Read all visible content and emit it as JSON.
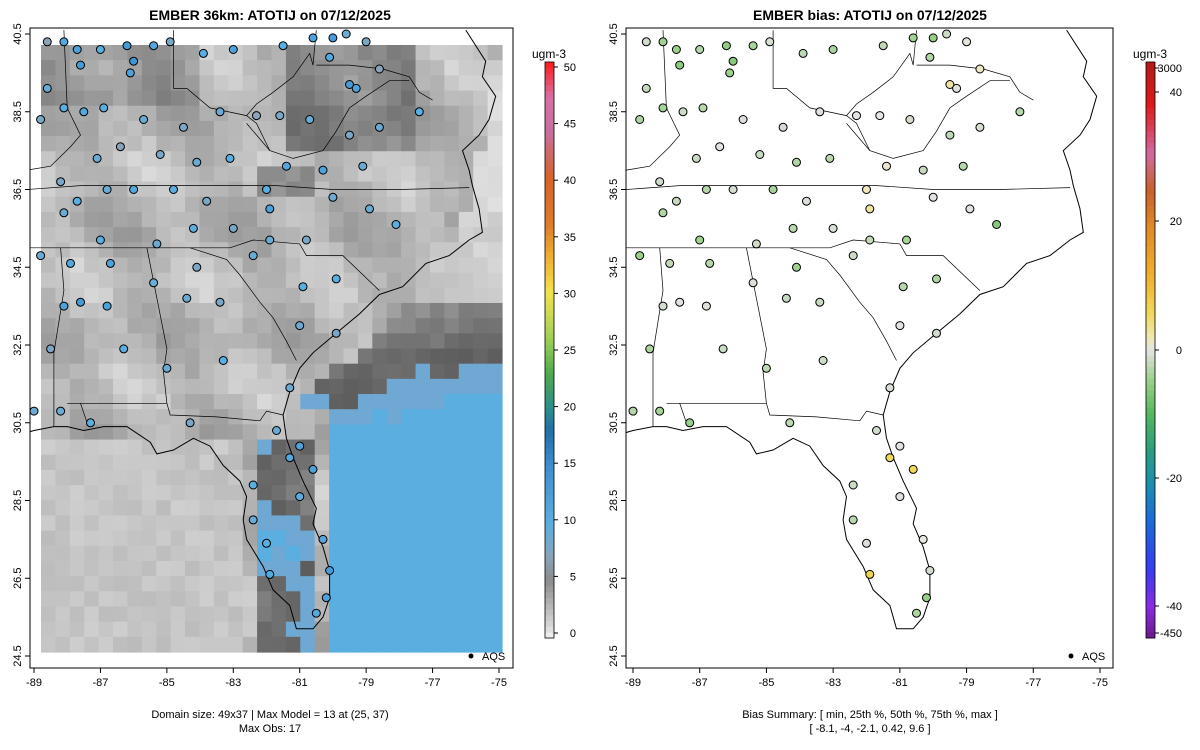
{
  "left_panel": {
    "title": "EMBER 36km: ATOTIJ on 07/12/2025",
    "x_ticks": [
      "-89",
      "-87",
      "-85",
      "-83",
      "-81",
      "-79",
      "-77",
      "-75"
    ],
    "y_ticks": [
      "24.5",
      "26.5",
      "28.5",
      "30.5",
      "32.5",
      "34.5",
      "36.5",
      "38.5",
      "40.5"
    ],
    "colorbar": {
      "unit": "ugm-3",
      "ticks": [
        "0",
        "5",
        "10",
        "15",
        "20",
        "25",
        "30",
        "35",
        "40",
        "45",
        "50"
      ],
      "min": 0,
      "max": 50
    },
    "legend_label": "AQS",
    "footer_line1": "Domain size: 49x37 | Max Model = 13 at (25, 37)",
    "footer_line2": "Max Obs: 17"
  },
  "right_panel": {
    "title": "EMBER bias: ATOTIJ on 07/12/2025",
    "x_ticks": [
      "-89",
      "-87",
      "-85",
      "-83",
      "-81",
      "-79",
      "-77",
      "-75"
    ],
    "y_ticks": [
      "24.5",
      "26.5",
      "28.5",
      "30.5",
      "32.5",
      "34.5",
      "36.5",
      "38.5",
      "40.5"
    ],
    "colorbar": {
      "unit": "ugm-3",
      "ticks": [
        "3000",
        "40",
        "20",
        "0",
        "-20",
        "-40",
        "-450"
      ]
    },
    "legend_label": "AQS",
    "footer_line1": "Bias Summary: [ min, 25th %, 50th %, 75th %, max ]",
    "footer_line2": "[ -8.1,   -4,   -2.1,   0.42,   9.6 ]"
  },
  "chart_data": {
    "type": "map",
    "variable": "ATOTIJ",
    "date": "07/12/2025",
    "units": "ugm-3",
    "lon_range": [
      -89,
      -75
    ],
    "lat_range": [
      24.5,
      40.5
    ],
    "domain_size": [
      49,
      37
    ],
    "max_model": 13,
    "max_model_cell": [
      25,
      37
    ],
    "max_obs": 17,
    "bias_summary": {
      "min": -8.1,
      "p25": -4,
      "median": -2.1,
      "p75": 0.42,
      "max": 9.6
    },
    "stations": [
      {
        "lon": -88.6,
        "lat": 40.3,
        "obs": 7,
        "bias": -1.2
      },
      {
        "lon": -88.1,
        "lat": 40.3,
        "obs": 11,
        "bias": -4.5
      },
      {
        "lon": -87.7,
        "lat": 40.1,
        "obs": 12,
        "bias": -5.1
      },
      {
        "lon": -87.6,
        "lat": 39.7,
        "obs": 13,
        "bias": -6.2
      },
      {
        "lon": -87.0,
        "lat": 40.1,
        "obs": 10,
        "bias": -3.2
      },
      {
        "lon": -86.2,
        "lat": 40.2,
        "obs": 13,
        "bias": -5.8
      },
      {
        "lon": -86.0,
        "lat": 39.8,
        "obs": 14,
        "bias": -6.4
      },
      {
        "lon": -86.1,
        "lat": 39.5,
        "obs": 12,
        "bias": -4.8
      },
      {
        "lon": -85.4,
        "lat": 40.2,
        "obs": 11,
        "bias": -3.9
      },
      {
        "lon": -84.9,
        "lat": 40.3,
        "obs": 8,
        "bias": -0.8
      },
      {
        "lon": -83.9,
        "lat": 40.0,
        "obs": 10,
        "bias": -2.6
      },
      {
        "lon": -83.0,
        "lat": 40.1,
        "obs": 12,
        "bias": -4.1
      },
      {
        "lon": -81.5,
        "lat": 40.2,
        "obs": 10,
        "bias": -2.3
      },
      {
        "lon": -80.6,
        "lat": 40.4,
        "obs": 12,
        "bias": -4.4
      },
      {
        "lon": -80.0,
        "lat": 40.4,
        "obs": 13,
        "bias": -5.5
      },
      {
        "lon": -79.6,
        "lat": 40.5,
        "obs": 9,
        "bias": -1.6
      },
      {
        "lon": -79.0,
        "lat": 40.3,
        "obs": 8,
        "bias": 0.3
      },
      {
        "lon": -80.1,
        "lat": 39.9,
        "obs": 11,
        "bias": -3.4
      },
      {
        "lon": -78.6,
        "lat": 39.6,
        "obs": 7,
        "bias": 1.4
      },
      {
        "lon": -79.5,
        "lat": 39.2,
        "obs": 13,
        "bias": 2.6
      },
      {
        "lon": -79.3,
        "lat": 39.1,
        "obs": 12,
        "bias": -0.4
      },
      {
        "lon": -88.6,
        "lat": 39.1,
        "obs": 9,
        "bias": -2.2
      },
      {
        "lon": -88.8,
        "lat": 38.3,
        "obs": 8,
        "bias": -3.5
      },
      {
        "lon": -88.1,
        "lat": 38.6,
        "obs": 10,
        "bias": -4.2
      },
      {
        "lon": -87.5,
        "lat": 38.5,
        "obs": 11,
        "bias": -1.5
      },
      {
        "lon": -86.9,
        "lat": 38.6,
        "obs": 10,
        "bias": -3.0
      },
      {
        "lon": -85.7,
        "lat": 38.3,
        "obs": 9,
        "bias": -0.6
      },
      {
        "lon": -84.5,
        "lat": 38.1,
        "obs": 8,
        "bias": -1.0
      },
      {
        "lon": -83.4,
        "lat": 38.5,
        "obs": 9,
        "bias": -0.5
      },
      {
        "lon": -82.3,
        "lat": 38.4,
        "obs": 7,
        "bias": -0.2
      },
      {
        "lon": -81.6,
        "lat": 38.4,
        "obs": 8,
        "bias": 0.1
      },
      {
        "lon": -80.7,
        "lat": 38.3,
        "obs": 9,
        "bias": -1.1
      },
      {
        "lon": -79.5,
        "lat": 37.9,
        "obs": 8,
        "bias": -2.6
      },
      {
        "lon": -78.6,
        "lat": 38.1,
        "obs": 9,
        "bias": -0.9
      },
      {
        "lon": -77.4,
        "lat": 38.5,
        "obs": 10,
        "bias": -3.1
      },
      {
        "lon": -87.1,
        "lat": 37.3,
        "obs": 9,
        "bias": -1.8
      },
      {
        "lon": -86.4,
        "lat": 37.6,
        "obs": 7,
        "bias": -0.3
      },
      {
        "lon": -85.2,
        "lat": 37.4,
        "obs": 8,
        "bias": -2.0
      },
      {
        "lon": -84.1,
        "lat": 37.2,
        "obs": 9,
        "bias": -3.3
      },
      {
        "lon": -83.1,
        "lat": 37.3,
        "obs": 10,
        "bias": -2.7
      },
      {
        "lon": -81.4,
        "lat": 37.1,
        "obs": 11,
        "bias": 0.8
      },
      {
        "lon": -80.3,
        "lat": 37.0,
        "obs": 12,
        "bias": -1.9
      },
      {
        "lon": -79.1,
        "lat": 37.1,
        "obs": 9,
        "bias": -3.0
      },
      {
        "lon": -88.2,
        "lat": 36.7,
        "obs": 8,
        "bias": -1.3
      },
      {
        "lon": -87.7,
        "lat": 36.2,
        "obs": 10,
        "bias": -2.1
      },
      {
        "lon": -86.8,
        "lat": 36.5,
        "obs": 9,
        "bias": -3.2
      },
      {
        "lon": -86.0,
        "lat": 36.5,
        "obs": 11,
        "bias": -1.0
      },
      {
        "lon": -84.8,
        "lat": 36.5,
        "obs": 10,
        "bias": -4.2
      },
      {
        "lon": -83.8,
        "lat": 36.2,
        "obs": 8,
        "bias": -0.7
      },
      {
        "lon": -82.0,
        "lat": 36.5,
        "obs": 10,
        "bias": 1.6
      },
      {
        "lon": -81.9,
        "lat": 36.0,
        "obs": 12,
        "bias": 2.8
      },
      {
        "lon": -80.0,
        "lat": 36.3,
        "obs": 9,
        "bias": -0.2
      },
      {
        "lon": -78.9,
        "lat": 36.0,
        "obs": 9,
        "bias": -0.4
      },
      {
        "lon": -78.1,
        "lat": 35.6,
        "obs": 10,
        "bias": -6.5
      },
      {
        "lon": -88.1,
        "lat": 35.9,
        "obs": 9,
        "bias": -3.4
      },
      {
        "lon": -87.0,
        "lat": 35.2,
        "obs": 10,
        "bias": -4.6
      },
      {
        "lon": -85.3,
        "lat": 35.1,
        "obs": 9,
        "bias": -1.4
      },
      {
        "lon": -84.2,
        "lat": 35.5,
        "obs": 10,
        "bias": -3.0
      },
      {
        "lon": -83.0,
        "lat": 35.5,
        "obs": 8,
        "bias": -0.8
      },
      {
        "lon": -81.9,
        "lat": 35.2,
        "obs": 9,
        "bias": -2.3
      },
      {
        "lon": -80.8,
        "lat": 35.2,
        "obs": 8,
        "bias": -4.1
      },
      {
        "lon": -88.8,
        "lat": 34.8,
        "obs": 9,
        "bias": -5.0
      },
      {
        "lon": -87.9,
        "lat": 34.6,
        "obs": 11,
        "bias": -2.4
      },
      {
        "lon": -86.7,
        "lat": 34.6,
        "obs": 12,
        "bias": -3.1
      },
      {
        "lon": -85.4,
        "lat": 34.1,
        "obs": 9,
        "bias": -0.6
      },
      {
        "lon": -84.1,
        "lat": 34.5,
        "obs": 8,
        "bias": -4.7
      },
      {
        "lon": -82.4,
        "lat": 34.8,
        "obs": 9,
        "bias": -1.5
      },
      {
        "lon": -80.9,
        "lat": 34.0,
        "obs": 10,
        "bias": -2.9
      },
      {
        "lon": -79.9,
        "lat": 34.2,
        "obs": 10,
        "bias": -3.6
      },
      {
        "lon": -88.1,
        "lat": 33.5,
        "obs": 12,
        "bias": -0.9
      },
      {
        "lon": -87.6,
        "lat": 33.6,
        "obs": 13,
        "bias": -0.3
      },
      {
        "lon": -86.8,
        "lat": 33.5,
        "obs": 12,
        "bias": -0.5
      },
      {
        "lon": -84.4,
        "lat": 33.7,
        "obs": 9,
        "bias": -2.0
      },
      {
        "lon": -83.4,
        "lat": 33.6,
        "obs": 8,
        "bias": -1.8
      },
      {
        "lon": -81.0,
        "lat": 33.0,
        "obs": 9,
        "bias": -0.2
      },
      {
        "lon": -79.9,
        "lat": 32.8,
        "obs": 8,
        "bias": -1.2
      },
      {
        "lon": -88.5,
        "lat": 32.4,
        "obs": 8,
        "bias": -3.9
      },
      {
        "lon": -86.3,
        "lat": 32.4,
        "obs": 10,
        "bias": -1.7
      },
      {
        "lon": -85.0,
        "lat": 31.9,
        "obs": 9,
        "bias": -2.6
      },
      {
        "lon": -83.3,
        "lat": 32.1,
        "obs": 10,
        "bias": -1.4
      },
      {
        "lon": -81.3,
        "lat": 31.4,
        "obs": 9,
        "bias": -0.8
      },
      {
        "lon": -89.0,
        "lat": 30.8,
        "obs": 9,
        "bias": -3.2
      },
      {
        "lon": -88.2,
        "lat": 30.8,
        "obs": 9,
        "bias": -4.3
      },
      {
        "lon": -87.3,
        "lat": 30.5,
        "obs": 10,
        "bias": -5.1
      },
      {
        "lon": -84.3,
        "lat": 30.5,
        "obs": 8,
        "bias": -2.7
      },
      {
        "lon": -81.7,
        "lat": 30.3,
        "obs": 9,
        "bias": -1.3
      },
      {
        "lon": -81.0,
        "lat": 29.9,
        "obs": 12,
        "bias": -0.3
      },
      {
        "lon": -81.3,
        "lat": 29.6,
        "obs": 11,
        "bias": 5.7
      },
      {
        "lon": -80.6,
        "lat": 29.3,
        "obs": 12,
        "bias": 6.1
      },
      {
        "lon": -81.0,
        "lat": 28.6,
        "obs": 10,
        "bias": -0.5
      },
      {
        "lon": -82.4,
        "lat": 28.9,
        "obs": 10,
        "bias": -1.6
      },
      {
        "lon": -82.4,
        "lat": 28.0,
        "obs": 9,
        "bias": -2.9
      },
      {
        "lon": -82.0,
        "lat": 27.4,
        "obs": 10,
        "bias": -0.6
      },
      {
        "lon": -81.9,
        "lat": 26.6,
        "obs": 11,
        "bias": 6.8
      },
      {
        "lon": -80.3,
        "lat": 27.5,
        "obs": 11,
        "bias": 0.2
      },
      {
        "lon": -80.1,
        "lat": 26.7,
        "obs": 13,
        "bias": -1.0
      },
      {
        "lon": -80.2,
        "lat": 26.0,
        "obs": 12,
        "bias": -5.2
      },
      {
        "lon": -80.5,
        "lat": 25.6,
        "obs": 11,
        "bias": -3.8
      }
    ]
  }
}
